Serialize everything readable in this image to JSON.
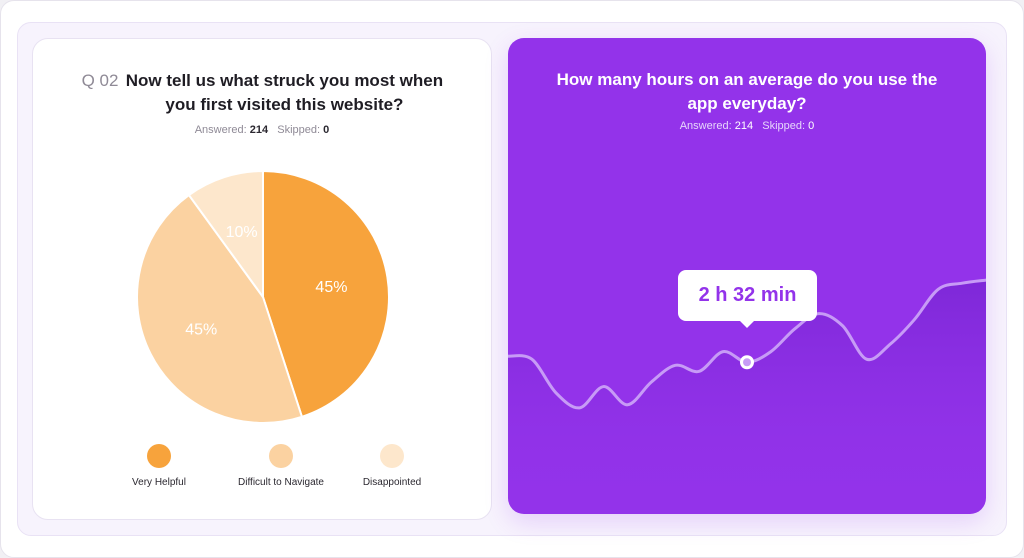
{
  "survey": {
    "question_number": "Q 02",
    "question_text": "Now tell us what struck you most when you first visited this website?",
    "answered_label": "Answered:",
    "answered": "214",
    "skipped_label": "Skipped:",
    "skipped": "0"
  },
  "usage": {
    "question_text": "How many hours on an average do you use the app everyday?",
    "answered_label": "Answered:",
    "answered": "214",
    "skipped_label": "Skipped:",
    "skipped": "0",
    "highlight_value": "2 h 32 min"
  },
  "colors": {
    "very_helpful": "#f7a33c",
    "difficult_to_navigate": "#fbd2a1",
    "disappointed": "#fde7cc",
    "purple": "#9333ea"
  },
  "chart_data": [
    {
      "type": "pie",
      "slices": [
        {
          "label": "Very Helpful",
          "value": 45,
          "display": "45%",
          "color": "#f7a33c"
        },
        {
          "label": "Difficult to Navigate",
          "value": 45,
          "display": "45%",
          "color": "#fbd2a1"
        },
        {
          "label": "Disappointed",
          "value": 10,
          "display": "10%",
          "color": "#fde7cc"
        }
      ],
      "legend_position": "bottom"
    },
    {
      "type": "line",
      "values": [
        0.42,
        0.4,
        0.18,
        0.08,
        0.22,
        0.1,
        0.25,
        0.36,
        0.32,
        0.45,
        0.38,
        0.45,
        0.6,
        0.7,
        0.62,
        0.4,
        0.5,
        0.66,
        0.86,
        0.9,
        0.92
      ],
      "highlight_index": 10,
      "highlight_label": "2 h 32 min",
      "grid": false,
      "axes": false
    }
  ]
}
